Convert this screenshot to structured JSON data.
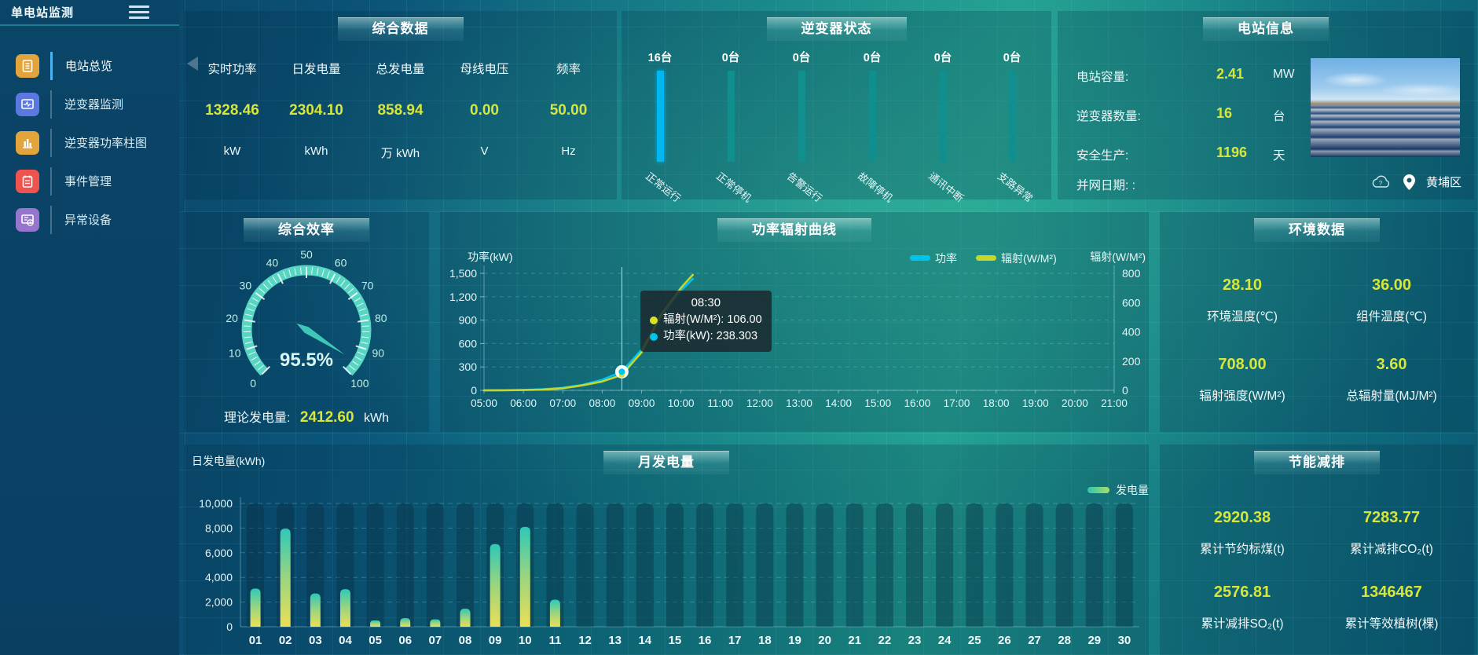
{
  "app": {
    "title": "单电站监测"
  },
  "sidebar": {
    "items": [
      {
        "label": "电站总览",
        "icon": "overview-icon",
        "color": "#e3a43c",
        "active": true
      },
      {
        "label": "逆变器监测",
        "icon": "inverter-monitor-icon",
        "color": "#5b78e0",
        "active": false
      },
      {
        "label": "逆变器功率柱图",
        "icon": "inverter-power-bars-icon",
        "color": "#e3a43c",
        "active": false
      },
      {
        "label": "事件管理",
        "icon": "event-management-icon",
        "color": "#ef5350",
        "active": false
      },
      {
        "label": "异常设备",
        "icon": "abnormal-device-icon",
        "color": "#9575cd",
        "active": false
      }
    ]
  },
  "panels": {
    "summary": {
      "title": "综合数据",
      "metrics": [
        {
          "label": "实时功率",
          "value": "1328.46",
          "unit": "kW"
        },
        {
          "label": "日发电量",
          "value": "2304.10",
          "unit": "kWh"
        },
        {
          "label": "总发电量",
          "value": "858.94",
          "unit": "万 kWh"
        },
        {
          "label": "母线电压",
          "value": "0.00",
          "unit": "V"
        },
        {
          "label": "频率",
          "value": "50.00",
          "unit": "Hz"
        }
      ]
    },
    "inverter_status": {
      "title": "逆变器状态"
    },
    "station_info": {
      "title": "电站信息",
      "rows": [
        {
          "label": "电站容量:",
          "value": "2.41",
          "unit": "MW"
        },
        {
          "label": "逆变器数量:",
          "value": "16",
          "unit": "台"
        },
        {
          "label": "安全生产:",
          "value": "1196",
          "unit": "天"
        },
        {
          "label": "并网日期: :",
          "value": "",
          "unit": ""
        }
      ],
      "location": "黄埔区"
    },
    "efficiency": {
      "title": "综合效率",
      "footer_label": "理论发电量:",
      "footer_value": "2412.60",
      "footer_unit": "kWh"
    },
    "power_radiation": {
      "title": "功率辐射曲线"
    },
    "environment": {
      "title": "环境数据",
      "stats": [
        {
          "value": "28.10",
          "label": "环境温度(℃)"
        },
        {
          "value": "36.00",
          "label": "组件温度(℃)"
        },
        {
          "value": "708.00",
          "label": "辐射强度(W/M²)"
        },
        {
          "value": "3.60",
          "label": "总辐射量(MJ/M²)"
        }
      ]
    },
    "monthly": {
      "title": "月发电量"
    },
    "saving": {
      "title": "节能减排",
      "stats": [
        {
          "value": "2920.38",
          "label": "累计节约标煤(t)"
        },
        {
          "value": "7283.77",
          "label": "累计减排CO₂(t)"
        },
        {
          "value": "2576.81",
          "label": "累计减排SO₂(t)"
        },
        {
          "value": "1346467",
          "label": "累计等效植树(棵)"
        }
      ]
    }
  },
  "chart_data": [
    {
      "id": "power_radiation_curve",
      "type": "line",
      "title": "功率辐射曲线",
      "xlabel_ticks": [
        "05:00",
        "06:00",
        "07:00",
        "08:00",
        "09:00",
        "10:00",
        "11:00",
        "12:00",
        "13:00",
        "14:00",
        "15:00",
        "16:00",
        "17:00",
        "18:00",
        "19:00",
        "20:00",
        "21:00"
      ],
      "x_range_hours": [
        5,
        21
      ],
      "y_left": {
        "name": "功率(kW)",
        "min": 0,
        "max": 1500,
        "step": 300
      },
      "y_right": {
        "name": "辐射(W/M²)",
        "min": 0,
        "max": 800,
        "step": 200
      },
      "legend": [
        {
          "name": "功率",
          "color": "#00c4f0"
        },
        {
          "name": "辐射(W/M²)",
          "color": "#c8d62b"
        }
      ],
      "series": [
        {
          "name": "功率",
          "axis": "left",
          "color": "#00c4f0",
          "points": [
            [
              5,
              0
            ],
            [
              5.5,
              2
            ],
            [
              6,
              5
            ],
            [
              6.5,
              14
            ],
            [
              7,
              32
            ],
            [
              7.5,
              70
            ],
            [
              8,
              135
            ],
            [
              8.5,
              238.303
            ],
            [
              9,
              520
            ],
            [
              9.5,
              950
            ],
            [
              10,
              1280
            ],
            [
              10.3,
              1430
            ]
          ]
        },
        {
          "name": "辐射(W/M²)",
          "axis": "right",
          "color": "#c8d62b",
          "points": [
            [
              5,
              0
            ],
            [
              5.5,
              0
            ],
            [
              6,
              2
            ],
            [
              6.5,
              5
            ],
            [
              7,
              14
            ],
            [
              7.5,
              34
            ],
            [
              8,
              60
            ],
            [
              8.5,
              106
            ],
            [
              9,
              260
            ],
            [
              9.5,
              520
            ],
            [
              10,
              700
            ],
            [
              10.3,
              790
            ]
          ]
        }
      ],
      "tooltip": {
        "time": "08:30",
        "x_hour": 8.5,
        "items": [
          {
            "label": "辐射(W/M²)",
            "value": "106.00",
            "color": "#d8e22a"
          },
          {
            "label": "功率(kW)",
            "value": "238.303",
            "color": "#00c4f0"
          }
        ]
      }
    },
    {
      "id": "monthly_generation",
      "type": "bar",
      "title": "月发电量",
      "ylabel": "日发电量(kWh)",
      "ylim": [
        0,
        10000
      ],
      "ystep": 2000,
      "legend": [
        {
          "name": "发电量",
          "colors": [
            "#2fc3b1",
            "#a8e063"
          ]
        }
      ],
      "categories": [
        "01",
        "02",
        "03",
        "04",
        "05",
        "06",
        "07",
        "08",
        "09",
        "10",
        "11",
        "12",
        "13",
        "14",
        "15",
        "16",
        "17",
        "18",
        "19",
        "20",
        "21",
        "22",
        "23",
        "24",
        "25",
        "26",
        "27",
        "28",
        "29",
        "30"
      ],
      "values": [
        3100,
        7950,
        2700,
        3050,
        510,
        700,
        600,
        1470,
        6700,
        8100,
        2200,
        0,
        0,
        0,
        0,
        0,
        0,
        0,
        0,
        0,
        0,
        0,
        0,
        0,
        0,
        0,
        0,
        0,
        0,
        0
      ],
      "bar_gradient": [
        "#2fc8b8",
        "#9ad57f",
        "#ecdf56"
      ]
    },
    {
      "id": "efficiency_gauge",
      "type": "gauge",
      "value": 95.5,
      "display": "95.5%",
      "min": 0,
      "max": 100,
      "tick_step": 10,
      "arc_color": "#59d6c3"
    },
    {
      "id": "inverter_status_bars",
      "type": "bar",
      "title": "逆变器状态",
      "categories": [
        "正常运行",
        "正常停机",
        "告警运行",
        "故障停机",
        "通讯中断",
        "支路异常"
      ],
      "values": [
        16,
        0,
        0,
        0,
        0,
        0
      ],
      "count_labels": [
        "16台",
        "0台",
        "0台",
        "0台",
        "0台",
        "0台"
      ],
      "bar_colors": [
        "#00b7f0",
        "#118e8e",
        "#118e8e",
        "#118e8e",
        "#118e8e",
        "#118e8e"
      ]
    }
  ]
}
